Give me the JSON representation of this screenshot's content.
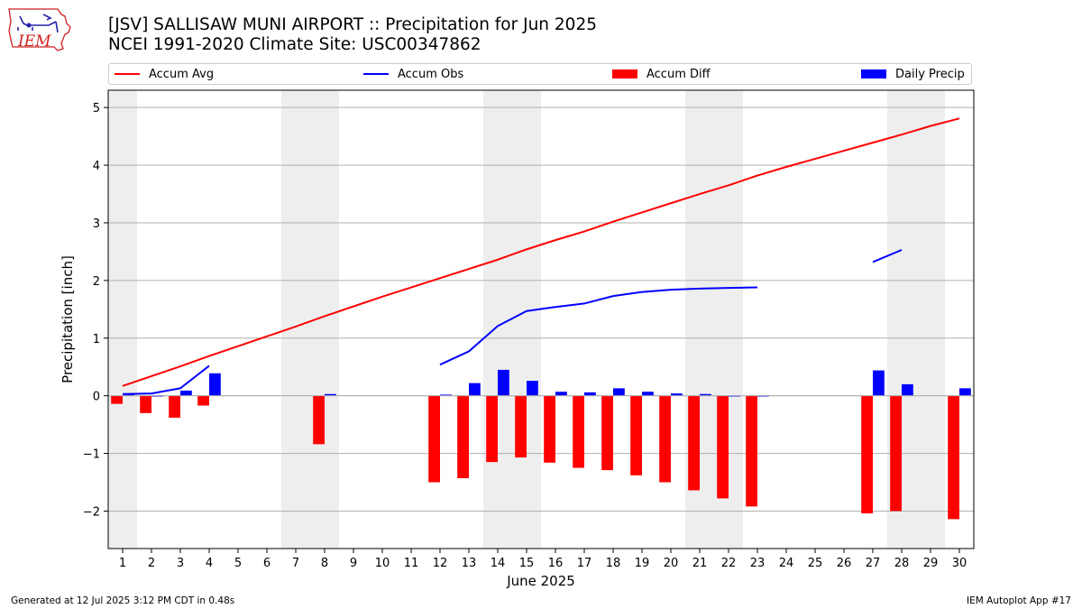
{
  "title_line1": "[JSV] SALLISAW MUNI AIRPORT :: Precipitation for Jun 2025",
  "title_line2": "NCEI 1991-2020 Climate Site: USC00347862",
  "logo_text": "IEM",
  "footer_left": "Generated at 12 Jul 2025 3:12 PM CDT in 0.48s",
  "footer_right": "IEM Autoplot App #17",
  "colors": {
    "avg": "#ff0000",
    "obs": "#0000ff",
    "diff": "#ff0000",
    "daily": "#0000ff",
    "shade": "#eeeeee",
    "grid": "#b0b0b0"
  },
  "legend": {
    "accum_avg": "Accum Avg",
    "accum_obs": "Accum Obs",
    "accum_diff": "Accum Diff",
    "daily_precip": "Daily Precip"
  },
  "chart_data": {
    "type": "bar",
    "xlabel": "June 2025",
    "ylabel": "Precipitation [inch]",
    "ylim": [
      -2.65,
      5.3
    ],
    "xlim": [
      0.5,
      30.5
    ],
    "yticks": [
      -2,
      -1,
      0,
      1,
      2,
      3,
      4,
      5
    ],
    "ytick_labels": [
      "−2",
      "−1",
      "0",
      "1",
      "2",
      "3",
      "4",
      "5"
    ],
    "days": [
      1,
      2,
      3,
      4,
      5,
      6,
      7,
      8,
      9,
      10,
      11,
      12,
      13,
      14,
      15,
      16,
      17,
      18,
      19,
      20,
      21,
      22,
      23,
      24,
      25,
      26,
      27,
      28,
      29,
      30
    ],
    "weekend_shading": [
      [
        0.5,
        1.5
      ],
      [
        6.5,
        8.5
      ],
      [
        13.5,
        15.5
      ],
      [
        20.5,
        22.5
      ],
      [
        27.5,
        29.5
      ]
    ],
    "grid": "y",
    "legend_position": "top",
    "series": [
      {
        "name": "Accum Avg",
        "kind": "line",
        "values": [
          0.17,
          0.34,
          0.51,
          0.69,
          0.86,
          1.03,
          1.2,
          1.38,
          1.55,
          1.72,
          1.88,
          2.04,
          2.2,
          2.36,
          2.54,
          2.7,
          2.85,
          3.02,
          3.18,
          3.34,
          3.5,
          3.65,
          3.82,
          3.97,
          4.11,
          4.25,
          4.39,
          4.53,
          4.68,
          4.81
        ]
      },
      {
        "name": "Accum Obs",
        "kind": "line",
        "values": [
          0.03,
          0.04,
          0.13,
          0.52,
          null,
          null,
          null,
          null,
          null,
          null,
          null,
          0.54,
          0.77,
          1.21,
          1.47,
          1.54,
          1.6,
          1.73,
          1.8,
          1.84,
          1.86,
          1.87,
          1.88,
          null,
          null,
          null,
          2.32,
          2.53,
          null,
          null
        ]
      },
      {
        "name": "Accum Diff",
        "kind": "bar",
        "values": [
          -0.14,
          -0.3,
          -0.38,
          -0.17,
          null,
          null,
          null,
          -0.84,
          null,
          null,
          null,
          -1.5,
          -1.43,
          -1.15,
          -1.07,
          -1.16,
          -1.25,
          -1.29,
          -1.38,
          -1.5,
          -1.64,
          -1.78,
          -1.92,
          null,
          null,
          null,
          -2.04,
          -2.0,
          null,
          -2.14
        ]
      },
      {
        "name": "Daily Precip",
        "kind": "bar",
        "values": [
          0.03,
          0.01,
          0.09,
          0.39,
          null,
          null,
          null,
          0.03,
          null,
          null,
          null,
          0.02,
          0.22,
          0.45,
          0.26,
          0.07,
          0.06,
          0.13,
          0.07,
          0.04,
          0.03,
          0.01,
          0.01,
          null,
          null,
          null,
          0.44,
          0.2,
          null,
          0.13
        ]
      }
    ]
  }
}
